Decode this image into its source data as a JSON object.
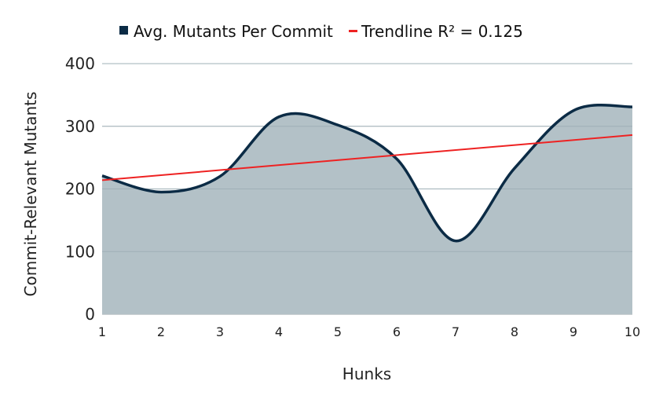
{
  "chart_data": {
    "type": "area",
    "x": [
      1,
      2,
      3,
      4,
      5,
      6,
      7,
      8,
      9,
      10
    ],
    "series": [
      {
        "name": "Avg. Mutants Per Commit",
        "values": [
          221,
          195,
          220,
          315,
          302,
          248,
          117,
          233,
          325,
          331
        ],
        "color": "#0b2b45",
        "fill": "#b3c1c7"
      },
      {
        "name": "Trendline R² = 0.125",
        "type": "line",
        "values_endpoints": [
          [
            1,
            214
          ],
          [
            10,
            286
          ]
        ],
        "color": "#ee2222"
      }
    ],
    "xlabel": "Hunks",
    "ylabel": "Commit-Relevant Mutants",
    "xlim": [
      1,
      10
    ],
    "ylim": [
      0,
      400
    ],
    "yticks": [
      0,
      100,
      200,
      300,
      400
    ],
    "xticks": [
      1,
      2,
      3,
      4,
      5,
      6,
      7,
      8,
      9,
      10
    ],
    "grid": true,
    "legend": "top"
  }
}
